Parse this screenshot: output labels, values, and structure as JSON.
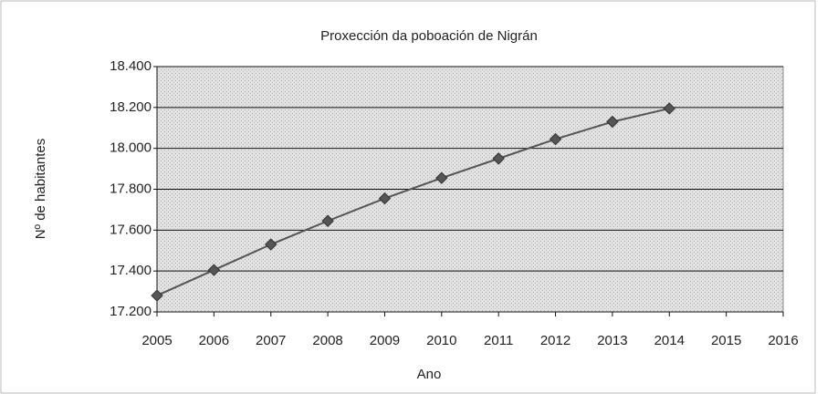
{
  "chart_data": {
    "type": "line",
    "title": "Proxección da poboación de Nigrán",
    "x_label": "Ano",
    "y_label": "Nº de habitantes",
    "x": [
      2005,
      2006,
      2007,
      2008,
      2009,
      2010,
      2011,
      2012,
      2013,
      2014
    ],
    "series": [
      {
        "color": "#555555",
        "values": [
          17280,
          17405,
          17530,
          17645,
          17755,
          17855,
          17950,
          18045,
          18130,
          18195
        ]
      }
    ],
    "xlim": [
      2005,
      2016
    ],
    "xticks": [
      2005,
      2006,
      2007,
      2008,
      2009,
      2010,
      2011,
      2012,
      2013,
      2014,
      2015,
      2016
    ],
    "ylim": [
      17200,
      18400
    ],
    "yticks": [
      {
        "value": 17200,
        "label": "17.200"
      },
      {
        "value": 17400,
        "label": "17.400"
      },
      {
        "value": 17600,
        "label": "17.600"
      },
      {
        "value": 17800,
        "label": "17.800"
      },
      {
        "value": 18000,
        "label": "18.000"
      },
      {
        "value": 18200,
        "label": "18.200"
      },
      {
        "value": 18400,
        "label": "18.400"
      }
    ],
    "grid": true
  }
}
